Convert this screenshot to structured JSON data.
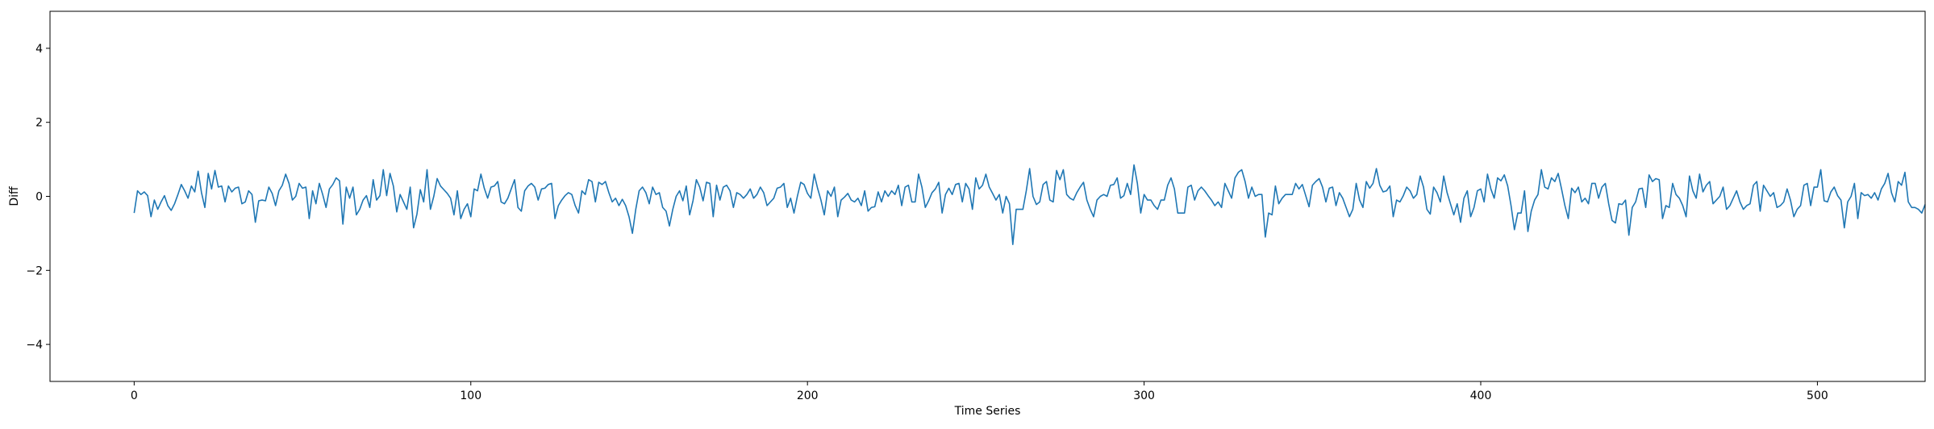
{
  "chart_data": {
    "type": "line",
    "title": "",
    "xlabel": "Time Series",
    "ylabel": "Diff",
    "xlim": [
      -25,
      532
    ],
    "ylim": [
      -5,
      5
    ],
    "xticks": [
      0,
      100,
      200,
      300,
      400,
      500
    ],
    "yticks": [
      -4,
      -2,
      0,
      2,
      4
    ],
    "xtick_labels": [
      "0",
      "100",
      "200",
      "300",
      "400",
      "500"
    ],
    "ytick_labels": [
      "−4",
      "−2",
      "0",
      "2",
      "4"
    ],
    "grid": false,
    "legend": "none",
    "series": [
      {
        "color": "#1f77b4",
        "x_start": 0,
        "x_step": 1,
        "values": [
          -0.45,
          0.15,
          0.05,
          0.12,
          0.02,
          -0.55,
          -0.1,
          -0.35,
          -0.15,
          0.02,
          -0.25,
          -0.38,
          -0.2,
          0.05,
          0.32,
          0.15,
          -0.05,
          0.28,
          0.12,
          0.68,
          0.1,
          -0.3,
          0.62,
          0.2,
          0.7,
          0.25,
          0.28,
          -0.15,
          0.28,
          0.12,
          0.22,
          0.25,
          -0.2,
          -0.15,
          0.15,
          0.05,
          -0.7,
          -0.12,
          -0.1,
          -0.12,
          0.25,
          0.08,
          -0.25,
          0.15,
          0.3,
          0.6,
          0.35,
          -0.1,
          0.0,
          0.35,
          0.22,
          0.25,
          -0.6,
          0.15,
          -0.2,
          0.35,
          0.05,
          -0.3,
          0.2,
          0.32,
          0.5,
          0.42,
          -0.75,
          0.25,
          -0.05,
          0.25,
          -0.5,
          -0.35,
          -0.1,
          0.02,
          -0.3,
          0.45,
          -0.1,
          0.02,
          0.72,
          0.02,
          0.62,
          0.28,
          -0.42,
          0.05,
          -0.15,
          -0.35,
          0.25,
          -0.85,
          -0.48,
          0.18,
          -0.15,
          0.72,
          -0.35,
          0.0,
          0.48,
          0.28,
          0.18,
          0.08,
          -0.05,
          -0.5,
          0.15,
          -0.6,
          -0.35,
          -0.2,
          -0.55,
          0.2,
          0.15,
          0.6,
          0.22,
          -0.05,
          0.25,
          0.28,
          0.4,
          -0.15,
          -0.2,
          -0.05,
          0.2,
          0.45,
          -0.3,
          -0.4,
          0.15,
          0.28,
          0.35,
          0.25,
          -0.1,
          0.2,
          0.22,
          0.32,
          0.35,
          -0.6,
          -0.25,
          -0.1,
          0.02,
          0.1,
          0.05,
          -0.25,
          -0.45,
          0.15,
          0.05,
          0.45,
          0.4,
          -0.15,
          0.38,
          0.32,
          0.4,
          0.1,
          -0.15,
          -0.05,
          -0.25,
          -0.08,
          -0.25,
          -0.55,
          -1.0,
          -0.35,
          0.15,
          0.25,
          0.1,
          -0.2,
          0.25,
          0.05,
          0.1,
          -0.3,
          -0.4,
          -0.8,
          -0.35,
          0.0,
          0.15,
          -0.12,
          0.28,
          -0.5,
          -0.12,
          0.45,
          0.25,
          -0.12,
          0.38,
          0.35,
          -0.55,
          0.3,
          -0.1,
          0.25,
          0.3,
          0.15,
          -0.3,
          0.1,
          0.05,
          -0.05,
          0.05,
          0.2,
          -0.05,
          0.05,
          0.25,
          0.1,
          -0.25,
          -0.15,
          -0.05,
          0.22,
          0.25,
          0.35,
          -0.3,
          -0.05,
          -0.45,
          0.0,
          0.38,
          0.32,
          0.08,
          -0.05,
          0.6,
          0.22,
          -0.1,
          -0.5,
          0.15,
          0.0,
          0.25,
          -0.55,
          -0.1,
          -0.02,
          0.08,
          -0.1,
          -0.15,
          -0.05,
          -0.25,
          0.15,
          -0.4,
          -0.3,
          -0.28,
          0.12,
          -0.15,
          0.15,
          0.0,
          0.15,
          0.05,
          0.3,
          -0.25,
          0.25,
          0.3,
          -0.15,
          -0.15,
          0.6,
          0.25,
          -0.3,
          -0.12,
          0.1,
          0.2,
          0.38,
          -0.45,
          0.05,
          0.22,
          0.05,
          0.32,
          0.35,
          -0.15,
          0.35,
          0.2,
          -0.35,
          0.5,
          0.2,
          0.3,
          0.6,
          0.25,
          0.08,
          -0.1,
          0.05,
          -0.45,
          0.0,
          -0.2,
          -1.3,
          -0.35,
          -0.35,
          -0.35,
          0.15,
          0.75,
          0.0,
          -0.22,
          -0.15,
          0.32,
          0.4,
          -0.1,
          -0.15,
          0.7,
          0.45,
          0.72,
          0.05,
          -0.05,
          -0.1,
          0.1,
          0.25,
          0.38,
          -0.1,
          -0.35,
          -0.55,
          -0.1,
          0.0,
          0.05,
          0.0,
          0.3,
          0.32,
          0.5,
          -0.05,
          0.02,
          0.35,
          0.05,
          0.85,
          0.35,
          -0.45,
          0.05,
          -0.1,
          -0.1,
          -0.25,
          -0.35,
          -0.1,
          -0.1,
          0.3,
          0.5,
          0.2,
          -0.45,
          -0.45,
          -0.45,
          0.25,
          0.3,
          -0.1,
          0.15,
          0.25,
          0.15,
          0.02,
          -0.1,
          -0.25,
          -0.15,
          -0.3,
          0.35,
          0.15,
          -0.05,
          0.5,
          0.65,
          0.72,
          0.4,
          -0.05,
          0.25,
          0.0,
          0.05,
          0.05,
          -1.1,
          -0.45,
          -0.5,
          0.28,
          -0.2,
          -0.05,
          0.05,
          0.05,
          0.05,
          0.35,
          0.2,
          0.32,
          0.02,
          -0.28,
          0.3,
          0.4,
          0.48,
          0.25,
          -0.15,
          0.22,
          0.25,
          -0.25,
          0.1,
          -0.05,
          -0.3,
          -0.55,
          -0.35,
          0.35,
          -0.1,
          -0.3,
          0.4,
          0.22,
          0.35,
          0.75,
          0.3,
          0.12,
          0.15,
          0.28,
          -0.55,
          -0.1,
          -0.15,
          0.02,
          0.25,
          0.15,
          -0.05,
          0.05,
          0.55,
          0.25,
          -0.35,
          -0.48,
          0.25,
          0.1,
          -0.15,
          0.55,
          0.1,
          -0.2,
          -0.5,
          -0.2,
          -0.7,
          -0.05,
          0.15,
          -0.55,
          -0.3,
          0.15,
          0.2,
          -0.15,
          0.6,
          0.2,
          -0.05,
          0.5,
          0.42,
          0.58,
          0.28,
          -0.25,
          -0.9,
          -0.45,
          -0.45,
          0.15,
          -0.95,
          -0.4,
          -0.1,
          0.05,
          0.72,
          0.25,
          0.2,
          0.5,
          0.4,
          0.62,
          0.2,
          -0.25,
          -0.6,
          0.22,
          0.1,
          0.25,
          -0.15,
          -0.05,
          -0.2,
          0.35,
          0.35,
          -0.05,
          0.25,
          0.35,
          -0.2,
          -0.65,
          -0.72,
          -0.2,
          -0.22,
          -0.1,
          -1.05,
          -0.3,
          -0.15,
          0.2,
          0.22,
          -0.3,
          0.58,
          0.4,
          0.48,
          0.45,
          -0.6,
          -0.25,
          -0.3,
          0.35,
          0.05,
          -0.05,
          -0.25,
          -0.55,
          0.55,
          0.15,
          -0.05,
          0.6,
          0.12,
          0.3,
          0.4,
          -0.2,
          -0.1,
          0.0,
          0.25,
          -0.35,
          -0.25,
          -0.05,
          0.15,
          -0.15,
          -0.35,
          -0.25,
          -0.2,
          0.3,
          0.4,
          -0.4,
          0.3,
          0.15,
          0.0,
          0.1,
          -0.3,
          -0.25,
          -0.15,
          0.2,
          -0.1,
          -0.55,
          -0.35,
          -0.25,
          0.3,
          0.35,
          -0.25,
          0.25,
          0.25,
          0.72,
          -0.12,
          -0.15,
          0.12,
          0.25,
          0.02,
          -0.1,
          -0.85,
          -0.15,
          0.0,
          0.35,
          -0.6,
          0.1,
          0.02,
          0.05,
          -0.05,
          0.1,
          -0.1,
          0.2,
          0.35,
          0.62,
          0.1,
          -0.15,
          0.4,
          0.3,
          0.65,
          -0.15,
          -0.3,
          -0.3,
          -0.35,
          -0.45,
          -0.22
        ]
      }
    ]
  }
}
